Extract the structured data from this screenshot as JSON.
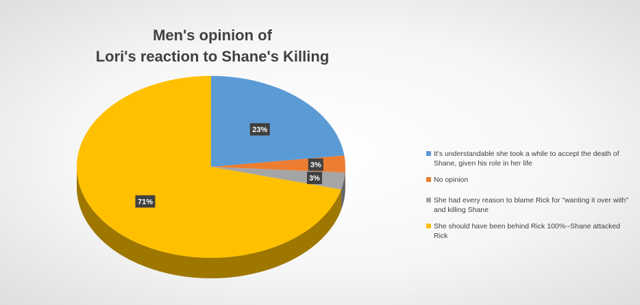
{
  "chart_data": {
    "type": "pie",
    "title_line1": "Men's opinion of",
    "title_line2": "Lori's reaction to Shane's Killing",
    "labels": [
      "It's understandable she took a while to accept the death of Shane, given his role in her life",
      "No opinion",
      "She had every reason to blame Rick for \"wanting it over with\" and killing Shane",
      "She should have been behind Rick 100%--Shane attacked Rick"
    ],
    "values": [
      23,
      3,
      3,
      71
    ],
    "data_labels": [
      "23%",
      "3%",
      "3%",
      "71%"
    ],
    "colors": [
      "#5b9bd5",
      "#ed7d31",
      "#a5a5a5",
      "#ffc000"
    ],
    "legend_position": "right",
    "style": "3d"
  }
}
